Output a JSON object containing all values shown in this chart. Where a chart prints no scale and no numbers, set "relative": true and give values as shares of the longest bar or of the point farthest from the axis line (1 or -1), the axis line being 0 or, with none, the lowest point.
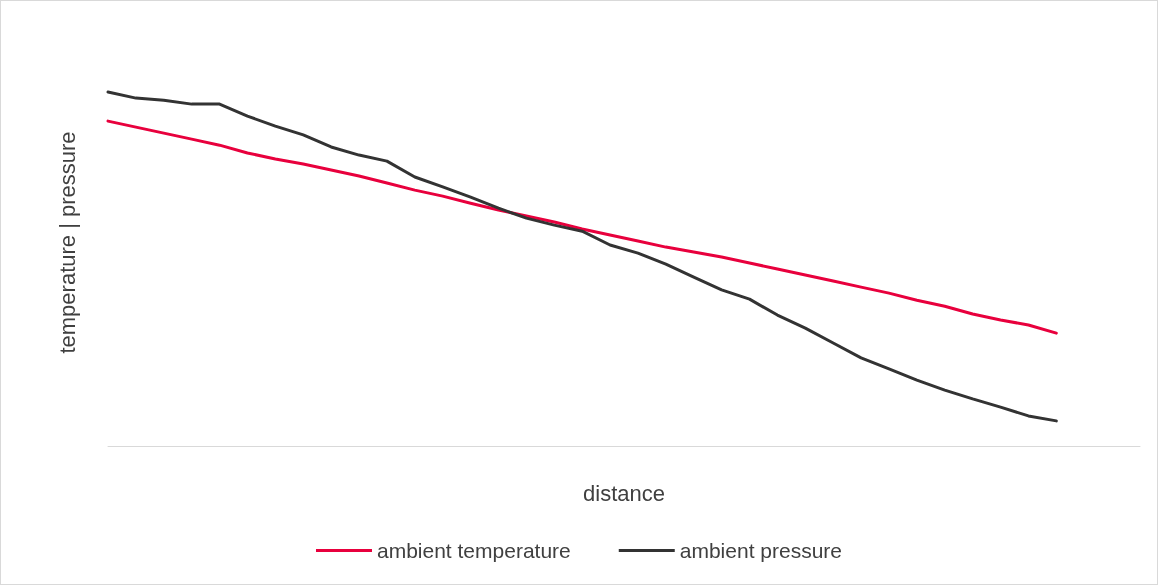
{
  "chart_data": {
    "type": "line",
    "relative": true,
    "xlabel": "distance",
    "ylabel": "temperature | pressure",
    "legend": "bottom",
    "grid": false,
    "marker": "none",
    "line_style": "solid",
    "categories": [
      null,
      null,
      null,
      null,
      null,
      null,
      null,
      null,
      null,
      null,
      null,
      null,
      null,
      null,
      null,
      null,
      null,
      null,
      null,
      null,
      null,
      null,
      null,
      null,
      null,
      null,
      null,
      null,
      null,
      null,
      null,
      null,
      null,
      null,
      null,
      null,
      null,
      null
    ],
    "series": [
      {
        "name": "ambient temperature",
        "color": "#e8003d",
        "values": [
          0.918,
          0.901,
          0.884,
          0.867,
          0.85,
          0.828,
          0.811,
          0.797,
          0.78,
          0.763,
          0.743,
          0.723,
          0.706,
          0.686,
          0.667,
          0.65,
          0.633,
          0.613,
          0.596,
          0.579,
          0.562,
          0.548,
          0.534,
          0.517,
          0.5,
          0.483,
          0.466,
          0.449,
          0.432,
          0.412,
          0.395,
          0.373,
          0.356,
          0.342,
          0.319,
          null,
          null,
          null
        ]
      },
      {
        "name": "ambient pressure",
        "color": "#333333",
        "values": [
          1,
          0.983,
          0.977,
          0.966,
          0.966,
          0.932,
          0.904,
          0.879,
          0.845,
          0.822,
          0.805,
          0.76,
          0.732,
          0.703,
          0.672,
          0.644,
          0.624,
          0.607,
          0.568,
          0.545,
          0.514,
          0.477,
          0.441,
          0.415,
          0.37,
          0.333,
          0.291,
          0.249,
          0.218,
          0.186,
          0.158,
          0.133,
          0.11,
          0.085,
          0.071,
          null,
          null,
          null
        ]
      }
    ]
  }
}
